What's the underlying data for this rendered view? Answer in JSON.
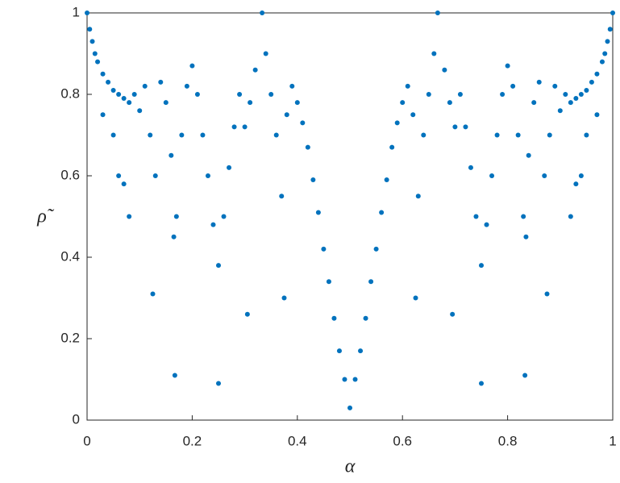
{
  "chart_data": {
    "type": "scatter",
    "x_label": "α",
    "y_label": "ρ̃",
    "color": "#0072bd",
    "xlim": [
      0,
      1
    ],
    "ylim": [
      0,
      1
    ],
    "xticks": [
      0,
      0.2,
      0.4,
      0.6,
      0.8,
      1
    ],
    "yticks": [
      0,
      0.2,
      0.4,
      0.6,
      0.8,
      1
    ],
    "x": [
      0,
      0.005,
      0.01,
      0.015,
      0.02,
      0.03,
      0.04,
      0.05,
      0.06,
      0.07,
      0.08,
      0.03,
      0.05,
      0.06,
      0.07,
      0.08,
      0.09,
      0.1,
      0.11,
      0.12,
      0.125,
      0.13,
      0.14,
      0.15,
      0.16,
      0.165,
      0.167,
      0.17,
      0.18,
      0.19,
      0.2,
      0.21,
      0.22,
      0.23,
      0.24,
      0.25,
      0.25,
      0.26,
      0.27,
      0.28,
      0.29,
      0.3,
      0.305,
      0.31,
      0.32,
      0.333,
      0.34,
      0.35,
      0.36,
      0.37,
      0.375,
      0.38,
      0.39,
      0.4,
      0.41,
      0.42,
      0.43,
      0.44,
      0.45,
      0.46,
      0.47,
      0.48,
      0.49,
      0.5,
      1,
      0.995,
      0.99,
      0.985,
      0.98,
      0.97,
      0.96,
      0.95,
      0.94,
      0.93,
      0.92,
      0.97,
      0.95,
      0.94,
      0.93,
      0.92,
      0.91,
      0.9,
      0.89,
      0.88,
      0.875,
      0.87,
      0.86,
      0.85,
      0.84,
      0.835,
      0.833,
      0.83,
      0.82,
      0.81,
      0.8,
      0.79,
      0.78,
      0.77,
      0.76,
      0.75,
      0.75,
      0.74,
      0.73,
      0.72,
      0.71,
      0.7,
      0.695,
      0.69,
      0.68,
      0.667,
      0.66,
      0.65,
      0.64,
      0.63,
      0.625,
      0.62,
      0.61,
      0.6,
      0.59,
      0.58,
      0.57,
      0.56,
      0.55,
      0.54,
      0.53,
      0.52,
      0.51
    ],
    "values": [
      1,
      0.96,
      0.93,
      0.9,
      0.88,
      0.85,
      0.83,
      0.81,
      0.8,
      0.79,
      0.78,
      0.75,
      0.7,
      0.6,
      0.58,
      0.5,
      0.8,
      0.76,
      0.82,
      0.7,
      0.31,
      0.6,
      0.83,
      0.78,
      0.65,
      0.45,
      0.11,
      0.5,
      0.7,
      0.82,
      0.87,
      0.8,
      0.7,
      0.6,
      0.48,
      0.38,
      0.09,
      0.5,
      0.62,
      0.72,
      0.8,
      0.72,
      0.26,
      0.78,
      0.86,
      1,
      0.9,
      0.8,
      0.7,
      0.55,
      0.3,
      0.75,
      0.82,
      0.78,
      0.73,
      0.67,
      0.59,
      0.51,
      0.42,
      0.34,
      0.25,
      0.17,
      0.1,
      0.03,
      1,
      0.96,
      0.93,
      0.9,
      0.88,
      0.85,
      0.83,
      0.81,
      0.8,
      0.79,
      0.78,
      0.75,
      0.7,
      0.6,
      0.58,
      0.5,
      0.8,
      0.76,
      0.82,
      0.7,
      0.31,
      0.6,
      0.83,
      0.78,
      0.65,
      0.45,
      0.11,
      0.5,
      0.7,
      0.82,
      0.87,
      0.8,
      0.7,
      0.6,
      0.48,
      0.38,
      0.09,
      0.5,
      0.62,
      0.72,
      0.8,
      0.72,
      0.26,
      0.78,
      0.86,
      1,
      0.9,
      0.8,
      0.7,
      0.55,
      0.3,
      0.75,
      0.82,
      0.78,
      0.73,
      0.67,
      0.59,
      0.51,
      0.42,
      0.34,
      0.25,
      0.17,
      0.1
    ]
  }
}
